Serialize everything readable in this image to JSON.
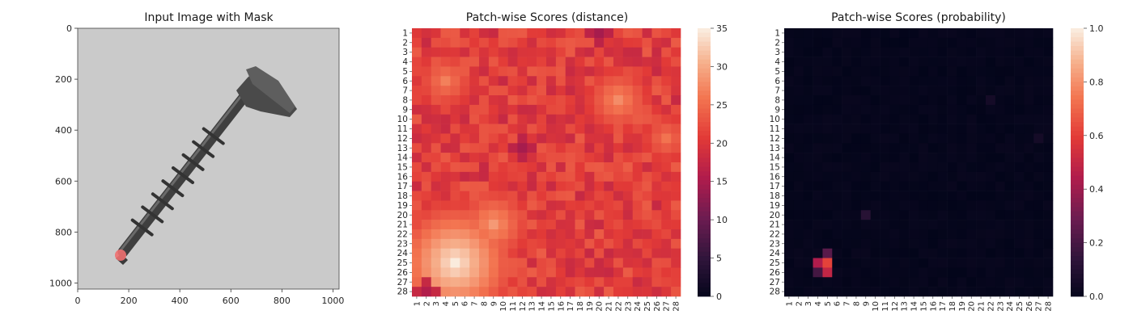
{
  "figure": {
    "panels": [
      {
        "title": "Input Image with Mask"
      },
      {
        "title": "Patch-wise Scores (distance)"
      },
      {
        "title": "Patch-wise Scores (probability)"
      }
    ]
  },
  "chart_data": [
    {
      "type": "image",
      "title": "Input Image with Mask",
      "image_size": [
        1024,
        1024
      ],
      "x_ticks": [
        0,
        200,
        400,
        600,
        800,
        1000
      ],
      "y_ticks": [
        0,
        200,
        400,
        600,
        800,
        1000
      ],
      "content": "screw on gray background, red mask at tip",
      "mask_color": "#f07070"
    },
    {
      "type": "heatmap",
      "title": "Patch-wise Scores (distance)",
      "rows": 28,
      "cols": 28,
      "x_ticks": [
        "1",
        "2",
        "3",
        "4",
        "5",
        "6",
        "7",
        "8",
        "9",
        "10",
        "11",
        "12",
        "13",
        "14",
        "15",
        "16",
        "17",
        "18",
        "19",
        "20",
        "21",
        "22",
        "23",
        "24",
        "25",
        "26",
        "27",
        "28"
      ],
      "y_ticks": [
        "1",
        "2",
        "3",
        "4",
        "5",
        "6",
        "7",
        "8",
        "9",
        "10",
        "11",
        "12",
        "13",
        "14",
        "15",
        "16",
        "17",
        "18",
        "19",
        "20",
        "21",
        "22",
        "23",
        "24",
        "25",
        "26",
        "27",
        "28"
      ],
      "colorbar": {
        "min": 0,
        "max": 35,
        "ticks": [
          0,
          5,
          10,
          15,
          20,
          25,
          30,
          35
        ]
      },
      "base_value": 21,
      "hotspots": [
        {
          "row": 25,
          "col": 5,
          "value": 35
        },
        {
          "row": 21,
          "col": 9,
          "value": 29
        },
        {
          "row": 8,
          "col": 22,
          "value": 28
        },
        {
          "row": 6,
          "col": 4,
          "value": 27
        },
        {
          "row": 12,
          "col": 27,
          "value": 26
        }
      ],
      "cold_spots": [
        {
          "row": 1,
          "col": 20,
          "value": 15
        },
        {
          "row": 13,
          "col": 12,
          "value": 15
        },
        {
          "row": 28,
          "col": 2,
          "value": 16
        }
      ],
      "colormap": "rocket"
    },
    {
      "type": "heatmap",
      "title": "Patch-wise Scores (probability)",
      "rows": 28,
      "cols": 28,
      "x_ticks": [
        "1",
        "2",
        "3",
        "4",
        "5",
        "6",
        "7",
        "8",
        "9",
        "10",
        "11",
        "12",
        "13",
        "14",
        "15",
        "16",
        "17",
        "18",
        "19",
        "20",
        "21",
        "22",
        "23",
        "24",
        "25",
        "26",
        "27",
        "28"
      ],
      "y_ticks": [
        "1",
        "2",
        "3",
        "4",
        "5",
        "6",
        "7",
        "8",
        "9",
        "10",
        "11",
        "12",
        "13",
        "14",
        "15",
        "16",
        "17",
        "18",
        "19",
        "20",
        "21",
        "22",
        "23",
        "24",
        "25",
        "26",
        "27",
        "28"
      ],
      "colorbar": {
        "min": 0.0,
        "max": 1.0,
        "ticks": [
          "0.0",
          "0.2",
          "0.4",
          "0.6",
          "0.8",
          "1.0"
        ]
      },
      "base_value": 0.0,
      "hotspots": [
        {
          "row": 25,
          "col": 5,
          "value": 0.62
        },
        {
          "row": 26,
          "col": 5,
          "value": 0.5
        },
        {
          "row": 25,
          "col": 4,
          "value": 0.45
        },
        {
          "row": 24,
          "col": 5,
          "value": 0.25
        },
        {
          "row": 26,
          "col": 4,
          "value": 0.2
        },
        {
          "row": 20,
          "col": 9,
          "value": 0.12
        },
        {
          "row": 8,
          "col": 22,
          "value": 0.06
        },
        {
          "row": 12,
          "col": 27,
          "value": 0.06
        }
      ],
      "colormap": "rocket"
    }
  ]
}
